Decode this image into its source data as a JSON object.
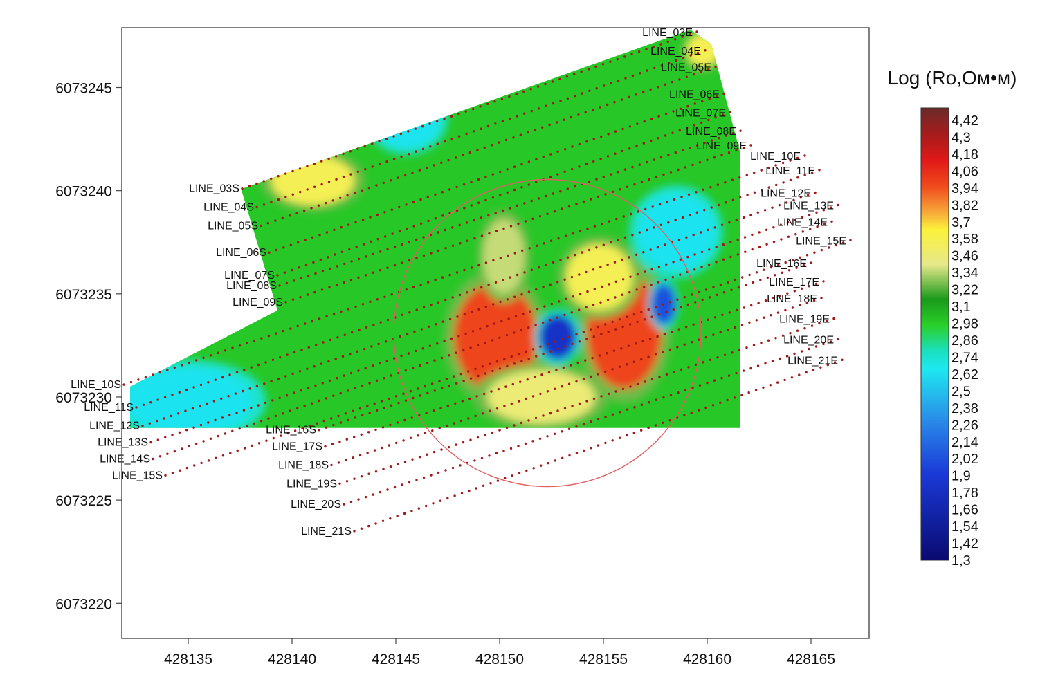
{
  "chart_data": {
    "type": "heatmap",
    "title": "",
    "xlabel": "",
    "ylabel": "",
    "xlim": [
      428131.8,
      428167.8
    ],
    "ylim": [
      6073218.3,
      6073247.9
    ],
    "x_ticks": [
      428135,
      428140,
      428145,
      428150,
      428155,
      428160,
      428165
    ],
    "y_ticks": [
      6073220,
      6073225,
      6073230,
      6073235,
      6073240,
      6073245
    ],
    "grid": false,
    "colorbar": {
      "title": "Log (Ro,Ом•м)",
      "min": 1.3,
      "max": 4.42,
      "ticks": [
        "4,42",
        "4,3",
        "4,18",
        "4,06",
        "3,94",
        "3,82",
        "3,7",
        "3,58",
        "3,46",
        "3,34",
        "3,22",
        "3,1",
        "2,98",
        "2,86",
        "2,74",
        "2,62",
        "2,5",
        "2,38",
        "2,26",
        "2,14",
        "2,02",
        "1,9",
        "1,78",
        "1,66",
        "1,54",
        "1,42",
        "1,3"
      ],
      "colors": [
        "#6b2a2a",
        "#a51c1c",
        "#e01818",
        "#f04a1c",
        "#f7a83a",
        "#fbf23a",
        "#e6e88a",
        "#1a9a1a",
        "#2ad02a",
        "#1ae0c0",
        "#1ee8f0",
        "#2a8ae8",
        "#1a3ad8",
        "#0a0a70"
      ],
      "color_stops": [
        4.42,
        4.24,
        4.06,
        3.88,
        3.7,
        3.58,
        3.34,
        3.1,
        2.92,
        2.74,
        2.62,
        2.26,
        1.9,
        1.3
      ]
    },
    "series": [
      {
        "name": "LINE_03",
        "start": [
          428137.6,
          6073240.1
        ],
        "end": [
          428159.5,
          6073247.7
        ]
      },
      {
        "name": "LINE_04",
        "start": [
          428138.3,
          6073239.2
        ],
        "end": [
          428159.9,
          6073246.8
        ]
      },
      {
        "name": "LINE_05",
        "start": [
          428138.5,
          6073238.3
        ],
        "end": [
          428160.4,
          6073246.0
        ]
      },
      {
        "name": "LINE_06",
        "start": [
          428138.9,
          6073237.0
        ],
        "end": [
          428160.8,
          6073244.7
        ]
      },
      {
        "name": "LINE_07",
        "start": [
          428139.3,
          6073235.9
        ],
        "end": [
          428161.1,
          6073243.8
        ]
      },
      {
        "name": "LINE_08",
        "start": [
          428139.4,
          6073235.4
        ],
        "end": [
          428161.6,
          6073242.9
        ]
      },
      {
        "name": "LINE_09",
        "start": [
          428139.7,
          6073234.6
        ],
        "end": [
          428162.1,
          6073242.2
        ]
      },
      {
        "name": "LINE_10",
        "start": [
          428131.9,
          6073230.6
        ],
        "end": [
          428164.7,
          6073241.7
        ]
      },
      {
        "name": "LINE_11",
        "start": [
          428132.5,
          6073229.5
        ],
        "end": [
          428165.4,
          6073241.0
        ]
      },
      {
        "name": "LINE_12",
        "start": [
          428132.8,
          6073228.6
        ],
        "end": [
          428165.2,
          6073239.9
        ]
      },
      {
        "name": "LINE_13",
        "start": [
          428133.2,
          6073227.8
        ],
        "end": [
          428166.3,
          6073239.3
        ]
      },
      {
        "name": "LINE_14",
        "start": [
          428133.3,
          6073227.0
        ],
        "end": [
          428166.0,
          6073238.5
        ]
      },
      {
        "name": "LINE_15",
        "start": [
          428133.9,
          6073226.2
        ],
        "end": [
          428166.9,
          6073237.6
        ]
      },
      {
        "name": "LINE_16",
        "start": [
          428141.3,
          6073228.4
        ],
        "end": [
          428165.0,
          6073236.5
        ]
      },
      {
        "name": "LINE_17",
        "start": [
          428141.6,
          6073227.6
        ],
        "end": [
          428165.6,
          6073235.6
        ]
      },
      {
        "name": "LINE_18",
        "start": [
          428141.9,
          6073226.7
        ],
        "end": [
          428165.5,
          6073234.8
        ]
      },
      {
        "name": "LINE_19",
        "start": [
          428142.3,
          6073225.8
        ],
        "end": [
          428166.1,
          6073233.8
        ]
      },
      {
        "name": "LINE_20",
        "start": [
          428142.5,
          6073224.8
        ],
        "end": [
          428166.3,
          6073232.8
        ]
      },
      {
        "name": "LINE_21",
        "start": [
          428143.0,
          6073223.5
        ],
        "end": [
          428166.5,
          6073231.8
        ]
      }
    ],
    "line_start_labels": [
      "LINE_03S",
      "LINE_04S",
      "LINE_05S",
      "LINE_06S",
      "LINE_07S",
      "LINE_08S",
      "LINE_09S",
      "LINE_10S",
      "LINE_11S",
      "LINE_12S",
      "LINE_13S",
      "LINE_14S",
      "LINE_15S",
      "LINE_16S",
      "LINE_17S",
      "LINE_18S",
      "LINE_19S",
      "LINE_20S",
      "LINE_21S"
    ],
    "line_end_labels": [
      "LINE_03E",
      "LINE_04E",
      "LINE_05E",
      "LINE_06E",
      "LINE_07E",
      "LINE_08E",
      "LINE_09E",
      "LINE_10E",
      "LINE_11E",
      "LINE_12E",
      "LINE_13E",
      "LINE_14E",
      "LINE_15E",
      "LINE_16E",
      "LINE_17E",
      "LINE_18E",
      "LINE_19E",
      "LINE_20E",
      "LINE_21E"
    ],
    "anomalies": [
      {
        "type": "high",
        "x": 428149.8,
        "y": 6073232.9,
        "value": 3.9,
        "sx": 2.0,
        "sy": 2.6
      },
      {
        "type": "high",
        "x": 428156.0,
        "y": 6073233.2,
        "value": 3.9,
        "sx": 1.8,
        "sy": 2.8
      },
      {
        "type": "high",
        "x": 428154.8,
        "y": 6073235.8,
        "value": 3.5,
        "sx": 1.6,
        "sy": 1.6
      },
      {
        "type": "high",
        "x": 428152.0,
        "y": 6073230.0,
        "value": 3.4,
        "sx": 2.6,
        "sy": 1.3
      },
      {
        "type": "high",
        "x": 428150.2,
        "y": 6073236.8,
        "value": 3.3,
        "sx": 1.0,
        "sy": 1.8
      },
      {
        "type": "high",
        "x": 428141.0,
        "y": 6073240.5,
        "value": 3.5,
        "sx": 2.0,
        "sy": 1.2
      },
      {
        "type": "high",
        "x": 428159.8,
        "y": 6073246.8,
        "value": 3.5,
        "sx": 0.8,
        "sy": 0.8
      },
      {
        "type": "low",
        "x": 428152.8,
        "y": 6073232.9,
        "value": 1.8,
        "sx": 0.9,
        "sy": 1.1
      },
      {
        "type": "low",
        "x": 428157.9,
        "y": 6073234.5,
        "value": 2.0,
        "sx": 0.6,
        "sy": 1.0
      },
      {
        "type": "low",
        "x": 428135.0,
        "y": 6073229.8,
        "value": 2.6,
        "sx": 3.0,
        "sy": 1.6
      },
      {
        "type": "low",
        "x": 428145.5,
        "y": 6073243.5,
        "value": 2.6,
        "sx": 1.6,
        "sy": 1.4
      },
      {
        "type": "low",
        "x": 428158.5,
        "y": 6073238.0,
        "value": 2.6,
        "sx": 1.8,
        "sy": 1.8
      }
    ],
    "circle": {
      "x": 428152.3,
      "y": 6073233.1,
      "radius": 7.4,
      "color": "#e06060"
    },
    "marker_color": "#a01818"
  }
}
